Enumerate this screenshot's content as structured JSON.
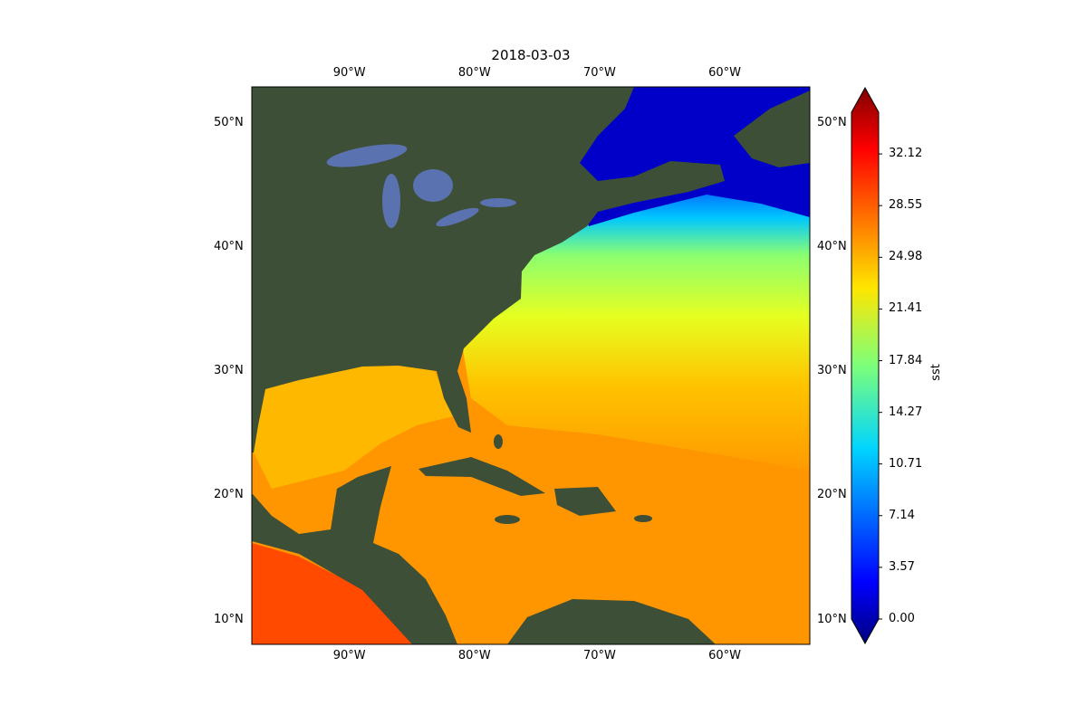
{
  "title": "2018-03-03",
  "map": {
    "projection": "PlateCarree",
    "extent_lon": [
      -97.8,
      -53.2
    ],
    "extent_lat": [
      8.0,
      52.9
    ],
    "basemap": "satellite imagery",
    "lon_ticks": [
      "90°W",
      "80°W",
      "70°W",
      "60°W"
    ],
    "lon_tick_values": [
      -90,
      -80,
      -70,
      -60
    ],
    "lat_ticks": [
      "50°N",
      "40°N",
      "30°N",
      "20°N",
      "10°N"
    ],
    "lat_tick_values": [
      50,
      40,
      30,
      20,
      10
    ]
  },
  "colorbar": {
    "label": "sst",
    "colormap": "jet",
    "extend": "both",
    "range": [
      0.0,
      35.0
    ],
    "ticks": [
      "0.00",
      "3.57",
      "7.14",
      "10.71",
      "14.27",
      "17.84",
      "21.41",
      "24.98",
      "28.55",
      "32.12"
    ],
    "tick_values": [
      0.0,
      3.57,
      7.14,
      10.71,
      14.27,
      17.84,
      21.41,
      24.98,
      28.55,
      32.12
    ]
  },
  "colors": {
    "land": "#3d4f36",
    "lakes": "#5a73b0",
    "warm": "#ff9800",
    "cold": "#0000cc"
  }
}
